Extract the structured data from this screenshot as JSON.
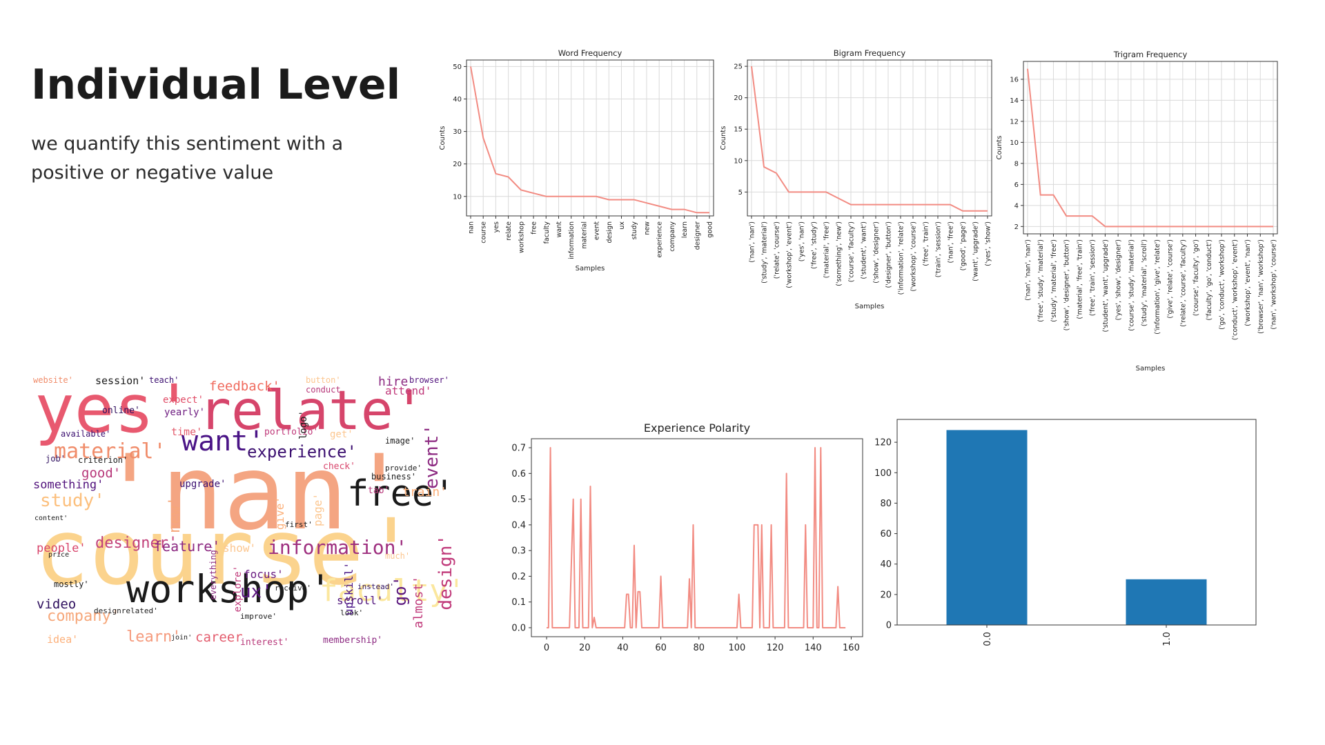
{
  "slide": {
    "title": "Individual Level",
    "subtitle": "we quantify this sentiment with a positive or negative value"
  },
  "chart_data": [
    {
      "type": "line",
      "title": "Word Frequency",
      "xlabel": "Samples",
      "ylabel": "Counts",
      "categories": [
        "nan",
        "course",
        "yes",
        "relate",
        "workshop",
        "free",
        "faculty",
        "want",
        "information",
        "material",
        "event",
        "design",
        "ux",
        "study",
        "new",
        "experience",
        "company",
        "learn",
        "designer",
        "good"
      ],
      "values": [
        50,
        28,
        17,
        16,
        12,
        11,
        10,
        10,
        10,
        10,
        10,
        9,
        9,
        9,
        8,
        7,
        6,
        6,
        5,
        5
      ],
      "ylim": [
        4,
        52
      ],
      "yticks": [
        10,
        20,
        30,
        40,
        50
      ],
      "grid": true,
      "color": "#f28b82"
    },
    {
      "type": "line",
      "title": "Bigram Frequency",
      "xlabel": "Samples",
      "ylabel": "Counts",
      "categories": [
        "('nan', 'nan')",
        "('study', 'material')",
        "('relate', 'course')",
        "('workshop', 'event')",
        "('yes', 'nan')",
        "('free', 'study')",
        "('material', 'free')",
        "('something', 'new')",
        "('course', 'faculty')",
        "('student', 'want')",
        "('show', 'designer')",
        "('designer', 'button')",
        "('information', 'relate')",
        "('workshop', 'course')",
        "('free', 'train')",
        "('train', 'session')",
        "('nan', 'free')",
        "('good', 'page')",
        "('want', 'upgrade')",
        "('yes', 'show')"
      ],
      "values": [
        25,
        9,
        8,
        5,
        5,
        5,
        5,
        4,
        3,
        3,
        3,
        3,
        3,
        3,
        3,
        3,
        3,
        2,
        2,
        2
      ],
      "ylim": [
        1.2,
        26
      ],
      "yticks": [
        5,
        10,
        15,
        20,
        25
      ],
      "grid": true,
      "color": "#f28b82"
    },
    {
      "type": "line",
      "title": "Trigram Frequency",
      "xlabel": "Samples",
      "ylabel": "Counts",
      "categories": [
        "('nan', 'nan', 'nan')",
        "('free', 'study', 'material')",
        "('study', 'material', 'free')",
        "('show', 'designer', 'button')",
        "('material', 'free', 'train')",
        "('free', 'train', 'session')",
        "('student', 'want', 'upgrade')",
        "('yes', 'show', 'designer')",
        "('course', 'study', 'material')",
        "('study', 'material', 'scroll')",
        "('information', 'give', 'relate')",
        "('give', 'relate', 'course')",
        "('relate', 'course', 'faculty')",
        "('course', 'faculty', 'go')",
        "('faculty', 'go', 'conduct')",
        "('go', 'conduct', 'workshop')",
        "('conduct', 'workshop', 'event')",
        "('workshop', 'event', 'nan')",
        "('browser', 'nan', 'workshop')",
        "('nan', 'workshop', 'course')"
      ],
      "values": [
        17,
        5,
        5,
        3,
        3,
        3,
        2,
        2,
        2,
        2,
        2,
        2,
        2,
        2,
        2,
        2,
        2,
        2,
        2,
        2
      ],
      "ylim": [
        1.3,
        17.7
      ],
      "yticks": [
        2,
        4,
        6,
        8,
        10,
        12,
        14,
        16
      ],
      "grid": true,
      "color": "#f28b82"
    },
    {
      "type": "line",
      "title": "Experience Polarity",
      "xlabel": "",
      "ylabel": "",
      "xlim": [
        -8,
        166
      ],
      "ylim": [
        -0.035,
        0.735
      ],
      "xticks": [
        0,
        20,
        40,
        60,
        80,
        100,
        120,
        140,
        160
      ],
      "yticks": [
        0.0,
        0.1,
        0.2,
        0.3,
        0.4,
        0.5,
        0.6,
        0.7
      ],
      "color": "#f28b82",
      "points": [
        [
          0,
          0
        ],
        [
          1,
          0
        ],
        [
          2,
          0.7
        ],
        [
          3,
          0
        ],
        [
          12,
          0
        ],
        [
          14,
          0.5
        ],
        [
          15,
          0
        ],
        [
          17,
          0
        ],
        [
          18,
          0.5
        ],
        [
          19,
          0
        ],
        [
          22,
          0
        ],
        [
          23,
          0.55
        ],
        [
          24,
          0
        ],
        [
          25,
          0.04
        ],
        [
          26,
          0
        ],
        [
          27,
          0
        ],
        [
          41,
          0
        ],
        [
          42,
          0.13
        ],
        [
          43,
          0.13
        ],
        [
          44,
          0
        ],
        [
          45,
          0
        ],
        [
          46,
          0.32
        ],
        [
          47,
          0
        ],
        [
          48,
          0.14
        ],
        [
          49,
          0.14
        ],
        [
          50,
          0
        ],
        [
          59,
          0
        ],
        [
          60,
          0.2
        ],
        [
          61,
          0
        ],
        [
          74,
          0
        ],
        [
          75,
          0.19
        ],
        [
          76,
          0
        ],
        [
          77,
          0.4
        ],
        [
          78,
          0
        ],
        [
          100,
          0
        ],
        [
          101,
          0.13
        ],
        [
          102,
          0
        ],
        [
          108,
          0
        ],
        [
          109,
          0.4
        ],
        [
          111,
          0.4
        ],
        [
          112,
          0
        ],
        [
          113,
          0.4
        ],
        [
          114,
          0
        ],
        [
          117,
          0
        ],
        [
          118,
          0.4
        ],
        [
          119,
          0
        ],
        [
          125,
          0
        ],
        [
          126,
          0.6
        ],
        [
          127,
          0
        ],
        [
          135,
          0
        ],
        [
          136,
          0.4
        ],
        [
          137,
          0
        ],
        [
          140,
          0
        ],
        [
          141,
          0.7
        ],
        [
          142,
          0
        ],
        [
          143,
          0
        ],
        [
          144,
          0.7
        ],
        [
          145,
          0
        ],
        [
          152,
          0
        ],
        [
          153,
          0.16
        ],
        [
          154,
          0
        ],
        [
          157,
          0
        ]
      ]
    },
    {
      "type": "bar",
      "title": "",
      "categories": [
        "0.0",
        "1.0"
      ],
      "values": [
        128,
        30
      ],
      "ylim": [
        0,
        135
      ],
      "yticks": [
        0,
        20,
        40,
        60,
        80,
        100,
        120
      ],
      "color": "#1f77b4"
    }
  ],
  "wordcloud": {
    "words": [
      {
        "text": "'nan'",
        "x": 95,
        "y": 95,
        "size": 150,
        "color": "#f4a582"
      },
      {
        "text": "course'",
        "x": 2,
        "y": 190,
        "size": 132,
        "color": "#fbd38d"
      },
      {
        "text": "yes'",
        "x": 2,
        "y": 0,
        "size": 96,
        "color": "#e8596f"
      },
      {
        "text": "relate'",
        "x": 240,
        "y": 12,
        "size": 78,
        "color": "#d6456b"
      },
      {
        "text": "workshop'",
        "x": 135,
        "y": 282,
        "size": 55,
        "color": "#1a1a1a"
      },
      {
        "text": "free'",
        "x": 455,
        "y": 145,
        "size": 52,
        "color": "#1a1a1a"
      },
      {
        "text": "faculty'",
        "x": 415,
        "y": 290,
        "size": 44,
        "color": "#fbe79e"
      },
      {
        "text": "want'",
        "x": 215,
        "y": 75,
        "size": 40,
        "color": "#4a1486"
      },
      {
        "text": "material'",
        "x": 30,
        "y": 95,
        "size": 30,
        "color": "#f08c6a"
      },
      {
        "text": "experience'",
        "x": 310,
        "y": 98,
        "size": 24,
        "color": "#3b0f70"
      },
      {
        "text": "information'",
        "x": 340,
        "y": 235,
        "size": 28,
        "color": "#9e2f7f"
      },
      {
        "text": "study'",
        "x": 10,
        "y": 168,
        "size": 26,
        "color": "#fcbf7c"
      },
      {
        "text": "designer'",
        "x": 90,
        "y": 232,
        "size": 22,
        "color": "#c1407a"
      },
      {
        "text": "company'",
        "x": 20,
        "y": 338,
        "size": 22,
        "color": "#f6a77a"
      },
      {
        "text": "learn'",
        "x": 135,
        "y": 368,
        "size": 22,
        "color": "#f59a7c"
      },
      {
        "text": "career",
        "x": 235,
        "y": 370,
        "size": 19,
        "color": "#e35c6d"
      },
      {
        "text": "ux'",
        "x": 300,
        "y": 300,
        "size": 26,
        "color": "#5a167e"
      },
      {
        "text": "feature'",
        "x": 175,
        "y": 237,
        "size": 20,
        "color": "#8c2981"
      },
      {
        "text": "video",
        "x": 5,
        "y": 322,
        "size": 19,
        "color": "#2e0f5e"
      },
      {
        "text": "feedback'",
        "x": 255,
        "y": 6,
        "size": 19,
        "color": "#f06b5e"
      },
      {
        "text": "something'",
        "x": 0,
        "y": 150,
        "size": 17,
        "color": "#51127c"
      },
      {
        "text": "good'",
        "x": 70,
        "y": 132,
        "size": 19,
        "color": "#b73779"
      },
      {
        "text": "people'",
        "x": 5,
        "y": 242,
        "size": 17,
        "color": "#d8456c"
      },
      {
        "text": "session'",
        "x": 90,
        "y": 0,
        "size": 15,
        "color": "#1a1a1a"
      },
      {
        "text": "focus'",
        "x": 305,
        "y": 280,
        "size": 16,
        "color": "#6a1c81"
      },
      {
        "text": "show'",
        "x": 275,
        "y": 242,
        "size": 16,
        "color": "#fcc68f"
      },
      {
        "text": "scroll'",
        "x": 440,
        "y": 318,
        "size": 16,
        "color": "#4f127b"
      },
      {
        "text": "train'",
        "x": 535,
        "y": 160,
        "size": 18,
        "color": "#fcb07a"
      },
      {
        "text": "attend'",
        "x": 510,
        "y": 14,
        "size": 16,
        "color": "#c0397a"
      },
      {
        "text": "hire",
        "x": 500,
        "y": 0,
        "size": 18,
        "color": "#8c2981"
      },
      {
        "text": "upgrade'",
        "x": 212,
        "y": 150,
        "size": 14,
        "color": "#3b0f70"
      },
      {
        "text": "yearly'",
        "x": 190,
        "y": 46,
        "size": 14,
        "color": "#6f1e81"
      },
      {
        "text": "expect'",
        "x": 188,
        "y": 28,
        "size": 14,
        "color": "#e14d67"
      },
      {
        "text": "time'",
        "x": 200,
        "y": 74,
        "size": 15,
        "color": "#e35c6d"
      },
      {
        "text": "online'",
        "x": 100,
        "y": 44,
        "size": 13,
        "color": "#2e0f5e"
      },
      {
        "text": "available'",
        "x": 40,
        "y": 78,
        "size": 12,
        "color": "#3b0f70"
      },
      {
        "text": "job'",
        "x": 18,
        "y": 114,
        "size": 12,
        "color": "#2e0f5e"
      },
      {
        "text": "criterion'",
        "x": 65,
        "y": 116,
        "size": 12,
        "color": "#1a1a1a"
      },
      {
        "text": "membership'",
        "x": 420,
        "y": 377,
        "size": 13,
        "color": "#8c2981"
      },
      {
        "text": "interest'",
        "x": 300,
        "y": 380,
        "size": 13,
        "color": "#b73779"
      },
      {
        "text": "idea'",
        "x": 20,
        "y": 375,
        "size": 15,
        "color": "#fcb07a"
      },
      {
        "text": "business'",
        "x": 490,
        "y": 140,
        "size": 12,
        "color": "#1a1a1a"
      },
      {
        "text": "portfolio'",
        "x": 335,
        "y": 75,
        "size": 13,
        "color": "#c0397a"
      },
      {
        "text": "get'",
        "x": 430,
        "y": 78,
        "size": 14,
        "color": "#fcc68f"
      },
      {
        "text": "check'",
        "x": 420,
        "y": 125,
        "size": 13,
        "color": "#d8456c"
      },
      {
        "text": "image'",
        "x": 510,
        "y": 88,
        "size": 12,
        "color": "#1a1a1a"
      },
      {
        "text": "provide'",
        "x": 510,
        "y": 128,
        "size": 11,
        "color": "#1a1a1a"
      },
      {
        "text": "tab'",
        "x": 485,
        "y": 160,
        "size": 13,
        "color": "#b73779"
      },
      {
        "text": "mostly'",
        "x": 30,
        "y": 296,
        "size": 12,
        "color": "#1a1a1a"
      },
      {
        "text": "receive'",
        "x": 350,
        "y": 302,
        "size": 11,
        "color": "#1a1a1a"
      },
      {
        "text": "instead'",
        "x": 470,
        "y": 300,
        "size": 11,
        "color": "#2e0f5e"
      },
      {
        "text": "website'",
        "x": 0,
        "y": 0,
        "size": 12,
        "color": "#f08c6a"
      },
      {
        "text": "teach'",
        "x": 168,
        "y": 0,
        "size": 12,
        "color": "#3b0f70"
      },
      {
        "text": "button'",
        "x": 395,
        "y": 0,
        "size": 12,
        "color": "#fcc68f"
      },
      {
        "text": "browser'",
        "x": 545,
        "y": 0,
        "size": 12,
        "color": "#51127c"
      },
      {
        "text": "conduct",
        "x": 395,
        "y": 14,
        "size": 12,
        "color": "#b73779"
      },
      {
        "text": "designrelated'",
        "x": 88,
        "y": 335,
        "size": 11,
        "color": "#1a1a1a"
      },
      {
        "text": "price",
        "x": 22,
        "y": 255,
        "size": 10,
        "color": "#1a1a1a"
      },
      {
        "text": "content'",
        "x": 2,
        "y": 202,
        "size": 10,
        "color": "#1a1a1a"
      },
      {
        "text": "first'",
        "x": 365,
        "y": 210,
        "size": 11,
        "color": "#1a1a1a"
      },
      {
        "text": "much'",
        "x": 510,
        "y": 255,
        "size": 12,
        "color": "#fcc68f"
      },
      {
        "text": "look'",
        "x": 445,
        "y": 338,
        "size": 11,
        "color": "#1a1a1a"
      },
      {
        "text": "improve'",
        "x": 300,
        "y": 343,
        "size": 11,
        "color": "#1a1a1a"
      },
      {
        "text": "join'",
        "x": 200,
        "y": 375,
        "size": 10,
        "color": "#1a1a1a"
      }
    ],
    "vertical": [
      {
        "text": "event'",
        "x": 565,
        "y": 70,
        "size": 26,
        "color": "#8c2981"
      },
      {
        "text": "design'",
        "x": 585,
        "y": 230,
        "size": 26,
        "color": "#c0397a"
      },
      {
        "text": "go'",
        "x": 520,
        "y": 290,
        "size": 24,
        "color": "#5a167e"
      },
      {
        "text": "almost'",
        "x": 550,
        "y": 290,
        "size": 18,
        "color": "#c0397a"
      },
      {
        "text": "new'",
        "x": 195,
        "y": 175,
        "size": 22,
        "color": "#f6a77a"
      },
      {
        "text": "give'",
        "x": 350,
        "y": 175,
        "size": 16,
        "color": "#fcb07a"
      },
      {
        "text": "page'",
        "x": 405,
        "y": 170,
        "size": 16,
        "color": "#fcc68f"
      },
      {
        "text": "upskill'",
        "x": 450,
        "y": 270,
        "size": 16,
        "color": "#4a1486"
      },
      {
        "text": "logo'",
        "x": 385,
        "y": 50,
        "size": 14,
        "color": "#1a1a1a"
      },
      {
        "text": "explore'",
        "x": 290,
        "y": 275,
        "size": 14,
        "color": "#c0397a"
      },
      {
        "text": "everything'",
        "x": 255,
        "y": 245,
        "size": 12,
        "color": "#8c2981"
      },
      {
        "text": "work'",
        "x": 620,
        "y": 290,
        "size": 14,
        "color": "#c0397a"
      }
    ]
  }
}
